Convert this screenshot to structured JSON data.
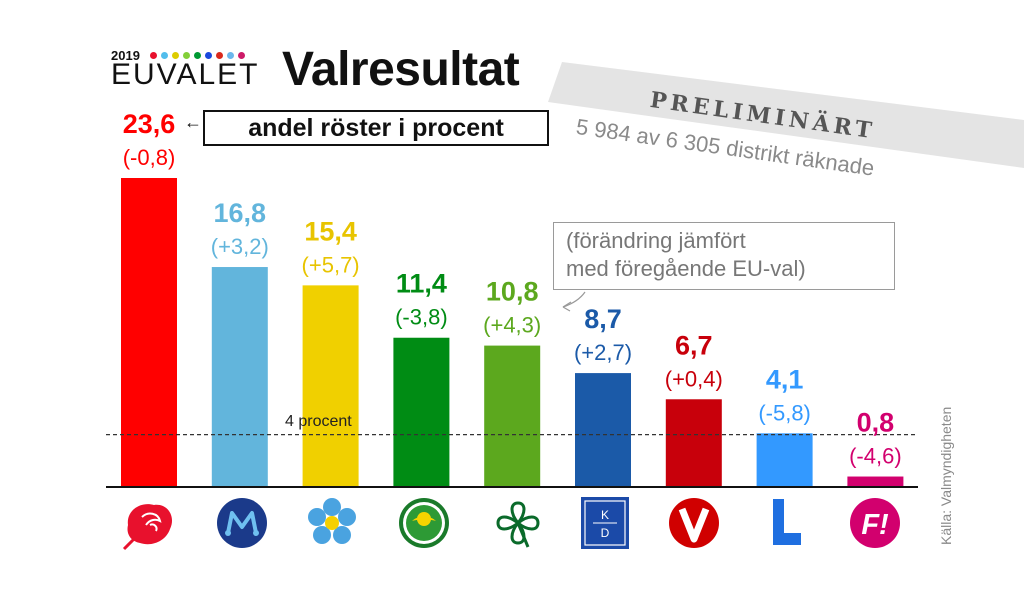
{
  "header": {
    "year": "2019",
    "logo_text": "EUVALET",
    "title": "Valresultat",
    "subtitle": "andel röster i procent",
    "preliminary": "PRELIMINÄRT",
    "districts": "5 984 av 6 305 distrikt räknade",
    "change_note_line1": "(förändring jämfört",
    "change_note_line2": "med föregående EU-val)",
    "source": "Källa: Valmyndigheten",
    "brand_dot_colors": [
      "#e8112d",
      "#52bdec",
      "#ddcc00",
      "#83cf39",
      "#009933",
      "#1b49dd",
      "#da291c",
      "#6bb7ec",
      "#cd1b68"
    ]
  },
  "chart_data": {
    "type": "bar",
    "title": "Valresultat",
    "subtitle": "andel röster i procent",
    "categories": [
      "S",
      "M",
      "SD",
      "MP",
      "C",
      "KD",
      "V",
      "L",
      "FI"
    ],
    "values": [
      23.6,
      16.8,
      15.4,
      11.4,
      10.8,
      8.7,
      6.7,
      4.1,
      0.8
    ],
    "value_labels": [
      "23,6",
      "16,8",
      "15,4",
      "11,4",
      "10,8",
      "8,7",
      "6,7",
      "4,1",
      "0,8"
    ],
    "change_labels": [
      "(-0,8)",
      "(+3,2)",
      "(+5,7)",
      "(-3,8)",
      "(+4,3)",
      "(+2,7)",
      "(+0,4)",
      "(-5,8)",
      "(-4,6)"
    ],
    "colors": [
      "#ff0000",
      "#62b5dc",
      "#f0d000",
      "#008c14",
      "#5ca81e",
      "#1b5aa8",
      "#c8000b",
      "#3399ff",
      "#d2006e"
    ],
    "label_colors": [
      "#ff0000",
      "#62b5dc",
      "#e8c400",
      "#008c14",
      "#5ca81e",
      "#1b5aa8",
      "#c8000b",
      "#3399ff",
      "#d2006e"
    ],
    "icons": [
      "social-democrats-rose-icon",
      "moderates-m-icon",
      "sweden-democrats-flower-icon",
      "green-party-dandelion-icon",
      "centre-party-clover-icon",
      "christian-democrats-kd-icon",
      "left-party-v-icon",
      "liberals-l-icon",
      "feminist-initiative-f-icon"
    ],
    "threshold": {
      "value": 4,
      "label": "4 procent"
    },
    "ylim": [
      0,
      23.6
    ],
    "grid": false,
    "legend": "none"
  }
}
